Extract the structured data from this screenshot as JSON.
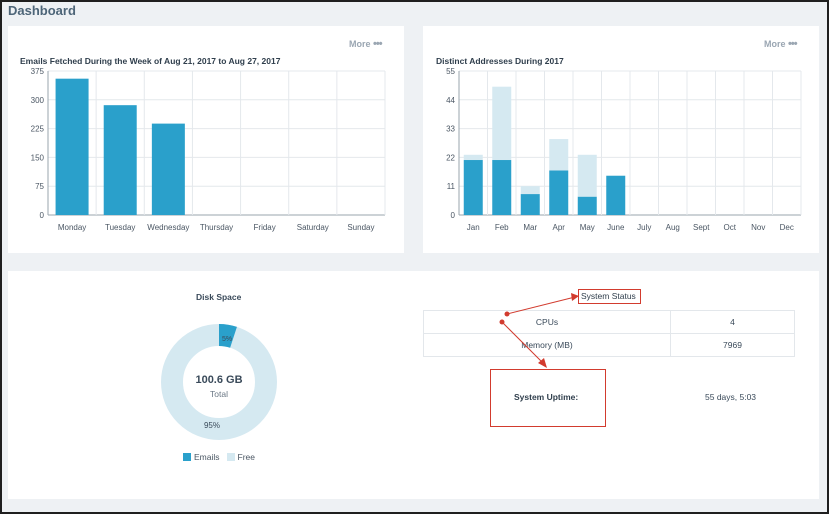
{
  "page": {
    "title": "Dashboard"
  },
  "emails_card": {
    "title": "Emails Fetched During the Week of Aug 21, 2017 to Aug 27, 2017",
    "more_label": "More",
    "more_dots": "•••"
  },
  "addresses_card": {
    "title": "Distinct Addresses During 2017",
    "more_label": "More",
    "more_dots": "•••"
  },
  "disk": {
    "title": "Disk Space",
    "center_value": "100.6 GB",
    "center_label": "Total",
    "used_pct_label": "5%",
    "free_pct_label": "95%",
    "used_fraction": 0.05,
    "legend_used": "Emails",
    "legend_free": "Free",
    "color_used": "#2aa0cb",
    "color_free": "#d5e9f1"
  },
  "status": {
    "title": "System Status",
    "rows": [
      {
        "label": "CPUs",
        "value": "4"
      },
      {
        "label": "Memory (MB)",
        "value": "7969"
      }
    ],
    "uptime_label": "System Uptime:",
    "uptime_value": "55 days, 5:03",
    "annotation_color": "#d23b2e"
  },
  "chart_data": [
    {
      "type": "bar",
      "title": "Emails Fetched During the Week of Aug 21, 2017 to Aug 27, 2017",
      "categories": [
        "Monday",
        "Tuesday",
        "Wednesday",
        "Thursday",
        "Friday",
        "Saturday",
        "Sunday"
      ],
      "values": [
        355,
        286,
        238,
        0,
        0,
        0,
        0
      ],
      "yticks": [
        "0",
        "75",
        "150",
        "225",
        "300",
        "375"
      ],
      "ylim": [
        0,
        375
      ],
      "grid": true,
      "color": "#2aa0cb"
    },
    {
      "type": "bar",
      "stacked": true,
      "title": "Distinct Addresses During 2017",
      "categories": [
        "Jan",
        "Feb",
        "Mar",
        "Apr",
        "May",
        "June",
        "July",
        "Aug",
        "Sept",
        "Oct",
        "Nov",
        "Dec"
      ],
      "series": [
        {
          "values": [
            21,
            21,
            8,
            17,
            7,
            15,
            0,
            0,
            0,
            0,
            0,
            0
          ],
          "color": "#2aa0cb"
        },
        {
          "values": [
            2,
            28,
            3,
            12,
            16,
            0,
            0,
            0,
            0,
            0,
            0,
            0
          ],
          "color": "#d5e9f1"
        }
      ],
      "yticks": [
        "0",
        "11",
        "22",
        "33",
        "44",
        "55"
      ],
      "ylim": [
        0,
        55
      ],
      "grid": true
    }
  ]
}
